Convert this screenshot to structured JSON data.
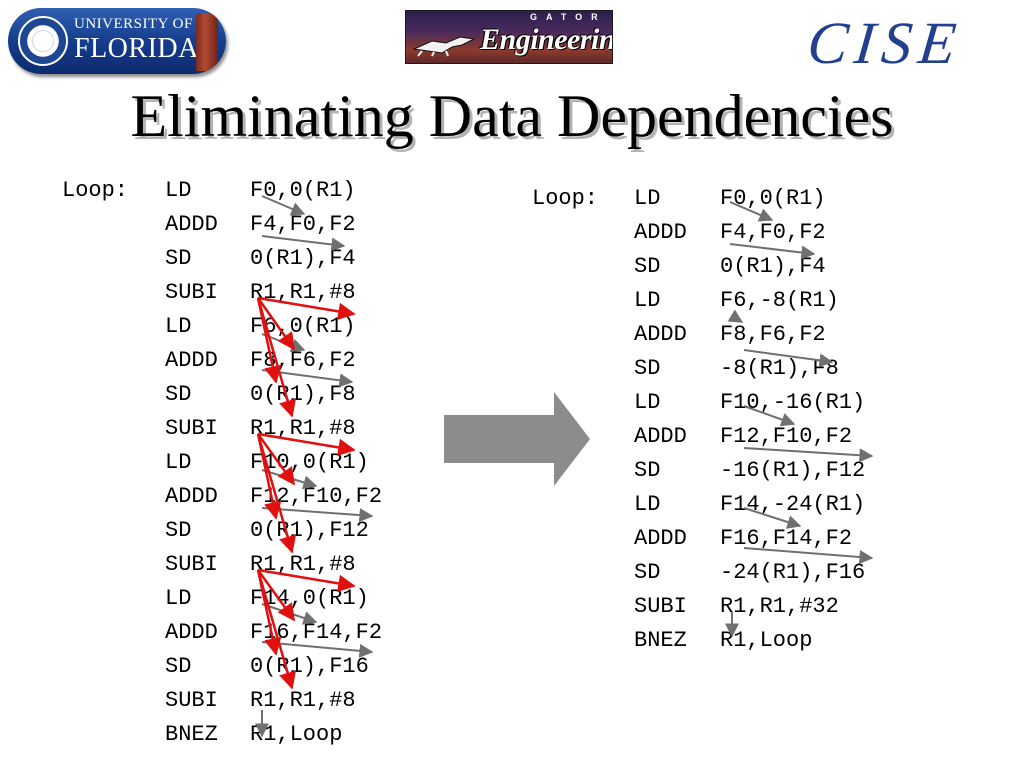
{
  "header": {
    "uf_logo": {
      "line1": "UNIVERSITY OF",
      "line2": "FLORIDA"
    },
    "gator_engineering_logo": {
      "top_word": "GATOR",
      "main_word": "Engineering"
    },
    "cise_logo": "CISE"
  },
  "title": "Eliminating Data Dependencies",
  "left_listing": {
    "rows": [
      {
        "label": "Loop:",
        "op": "LD",
        "args": "F0,0(R1)"
      },
      {
        "label": "",
        "op": "ADDD",
        "args": "F4,F0,F2"
      },
      {
        "label": "",
        "op": "SD",
        "args": "0(R1),F4"
      },
      {
        "label": "",
        "op": "SUBI",
        "args": "R1,R1,#8"
      },
      {
        "label": "",
        "op": "LD",
        "args": "F6,0(R1)"
      },
      {
        "label": "",
        "op": "ADDD",
        "args": "F8,F6,F2"
      },
      {
        "label": "",
        "op": "SD",
        "args": "0(R1),F8"
      },
      {
        "label": "",
        "op": "SUBI",
        "args": "R1,R1,#8"
      },
      {
        "label": "",
        "op": "LD",
        "args": "F10,0(R1)"
      },
      {
        "label": "",
        "op": "ADDD",
        "args": "F12,F10,F2"
      },
      {
        "label": "",
        "op": "SD",
        "args": "0(R1),F12"
      },
      {
        "label": "",
        "op": "SUBI",
        "args": "R1,R1,#8"
      },
      {
        "label": "",
        "op": "LD",
        "args": "F14,0(R1)"
      },
      {
        "label": "",
        "op": "ADDD",
        "args": "F16,F14,F2"
      },
      {
        "label": "",
        "op": "SD",
        "args": "0(R1),F16"
      },
      {
        "label": "",
        "op": "SUBI",
        "args": "R1,R1,#8"
      },
      {
        "label": "",
        "op": "BNEZ",
        "args": "R1,Loop"
      }
    ]
  },
  "right_listing": {
    "rows": [
      {
        "label": "Loop:",
        "op": "LD",
        "args": "F0,0(R1)"
      },
      {
        "label": "",
        "op": "ADDD",
        "args": "F4,F0,F2"
      },
      {
        "label": "",
        "op": "SD",
        "args": "0(R1),F4"
      },
      {
        "label": "",
        "op": "LD",
        "args": "F6,-8(R1)"
      },
      {
        "label": "",
        "op": "ADDD",
        "args": "F8,F6,F2"
      },
      {
        "label": "",
        "op": "SD",
        "args": "-8(R1),F8"
      },
      {
        "label": "",
        "op": "LD",
        "args": "F10,-16(R1)"
      },
      {
        "label": "",
        "op": "ADDD",
        "args": "F12,F10,F2"
      },
      {
        "label": "",
        "op": "SD",
        "args": "-16(R1),F12"
      },
      {
        "label": "",
        "op": "LD",
        "args": "F14,-24(R1)"
      },
      {
        "label": "",
        "op": "ADDD",
        "args": "F16,F14,F2"
      },
      {
        "label": "",
        "op": "SD",
        "args": "-24(R1),F16"
      },
      {
        "label": "",
        "op": "SUBI",
        "args": "R1,R1,#32"
      },
      {
        "label": "",
        "op": "BNEZ",
        "args": "R1,Loop"
      }
    ]
  },
  "colors": {
    "register_dependency_arrow": "#707070",
    "r1_dependency_arrow": "#e01010",
    "transform_arrow": "#8c8c8c",
    "title_shadow": "#b3b3b3",
    "uf_blue": "#143a8a",
    "cise_blue": "#233f8f"
  }
}
